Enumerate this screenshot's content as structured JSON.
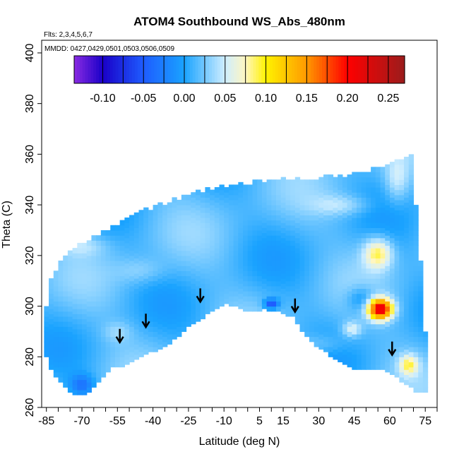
{
  "chart_data": {
    "type": "heatmap",
    "title": "ATOM4 Southbound WS_Abs_480nm",
    "flights_note": "Flts: 2,3,4,5,6,7",
    "dates_note": "MMDD: 0427,0429,0501,0503,0506,0509",
    "xlabel": "Latitude (deg N)",
    "ylabel": "Theta (C)",
    "xlim": [
      -87,
      80
    ],
    "ylim": [
      260,
      405
    ],
    "x_ticks": [
      -85,
      -70,
      -55,
      -40,
      -25,
      -10,
      5,
      15,
      30,
      45,
      60,
      75
    ],
    "y_ticks": [
      260,
      280,
      300,
      320,
      340,
      360,
      380,
      400
    ],
    "colorbar": {
      "range": [
        -0.135,
        0.27
      ],
      "ticks": [
        -0.1,
        -0.05,
        0.0,
        0.05,
        0.1,
        0.15,
        0.2,
        0.25
      ],
      "tick_labels": [
        "-0.10",
        "-0.05",
        "0.00",
        "0.05",
        "0.10",
        "0.15",
        "0.20",
        "0.25"
      ],
      "stops": [
        {
          "v": -0.135,
          "color": "#8a2be2"
        },
        {
          "v": -0.1,
          "color": "#1a00c8"
        },
        {
          "v": -0.05,
          "color": "#1e5cff"
        },
        {
          "v": 0.0,
          "color": "#1aa3ff"
        },
        {
          "v": 0.05,
          "color": "#cfeeff"
        },
        {
          "v": 0.075,
          "color": "#fff6c0"
        },
        {
          "v": 0.1,
          "color": "#fff200"
        },
        {
          "v": 0.15,
          "color": "#ff9900"
        },
        {
          "v": 0.2,
          "color": "#ff0000"
        },
        {
          "v": 0.27,
          "color": "#9b1c1c"
        }
      ]
    },
    "coverage": {
      "top": [
        [
          -86,
          300
        ],
        [
          -84,
          310
        ],
        [
          -80,
          318
        ],
        [
          -75,
          322
        ],
        [
          -70,
          324
        ],
        [
          -64,
          328
        ],
        [
          -58,
          331
        ],
        [
          -50,
          335
        ],
        [
          -42,
          338
        ],
        [
          -30,
          342
        ],
        [
          -20,
          345
        ],
        [
          -10,
          347
        ],
        [
          0,
          348
        ],
        [
          10,
          349
        ],
        [
          20,
          350
        ],
        [
          30,
          350
        ],
        [
          40,
          351
        ],
        [
          50,
          353
        ],
        [
          60,
          356
        ],
        [
          66,
          359
        ],
        [
          69,
          359
        ],
        [
          70,
          340
        ],
        [
          72,
          320
        ],
        [
          74,
          300
        ],
        [
          75,
          285
        ],
        [
          74,
          278
        ],
        [
          73,
          270
        ],
        [
          71,
          266
        ]
      ],
      "bottom": [
        [
          71,
          266
        ],
        [
          68,
          268
        ],
        [
          62,
          272
        ],
        [
          55,
          276
        ],
        [
          45,
          275
        ],
        [
          38,
          278
        ],
        [
          32,
          282
        ],
        [
          26,
          286
        ],
        [
          22,
          290
        ],
        [
          18,
          296
        ],
        [
          12,
          298
        ],
        [
          6,
          299
        ],
        [
          0,
          298
        ],
        [
          -6,
          300
        ],
        [
          -10,
          301
        ],
        [
          -18,
          297
        ],
        [
          -26,
          292
        ],
        [
          -35,
          285
        ],
        [
          -42,
          282
        ],
        [
          -48,
          279
        ],
        [
          -53,
          277
        ],
        [
          -58,
          276
        ],
        [
          -62,
          272
        ],
        [
          -66,
          268
        ],
        [
          -70,
          265
        ],
        [
          -75,
          265
        ],
        [
          -80,
          270
        ],
        [
          -84,
          275
        ],
        [
          -86,
          280
        ]
      ]
    },
    "base_value": 0.015,
    "blobs": [
      {
        "lat": 55,
        "theta": 321,
        "rx": 6,
        "ry": 6,
        "v": 0.09
      },
      {
        "lat": 56,
        "theta": 299,
        "rx": 5,
        "ry": 4,
        "v": 0.22
      },
      {
        "lat": 68,
        "theta": 277,
        "rx": 4,
        "ry": 4,
        "v": 0.08
      },
      {
        "lat": 44,
        "theta": 291,
        "rx": 4,
        "ry": 3,
        "v": 0.06
      },
      {
        "lat": 10,
        "theta": 301,
        "rx": 3,
        "ry": 2,
        "v": -0.06
      },
      {
        "lat": -70,
        "theta": 269,
        "rx": 5,
        "ry": 4,
        "v": -0.03
      },
      {
        "lat": -70,
        "theta": 324,
        "rx": 10,
        "ry": 4,
        "v": 0.04
      },
      {
        "lat": -45,
        "theta": 314,
        "rx": 10,
        "ry": 5,
        "v": 0.035
      },
      {
        "lat": 40,
        "theta": 340,
        "rx": 12,
        "ry": 4,
        "v": 0.045
      },
      {
        "lat": 63,
        "theta": 350,
        "rx": 5,
        "ry": 9,
        "v": 0.05
      },
      {
        "lat": 48,
        "theta": 303,
        "rx": 6,
        "ry": 5,
        "v": -0.02
      },
      {
        "lat": 30,
        "theta": 285,
        "rx": 12,
        "ry": 4,
        "v": 0.035
      },
      {
        "lat": -55,
        "theta": 290,
        "rx": 6,
        "ry": 4,
        "v": 0.035
      }
    ],
    "arrows": [
      {
        "lat": -54,
        "theta": 286
      },
      {
        "lat": -43,
        "theta": 292
      },
      {
        "lat": -20,
        "theta": 302
      },
      {
        "lat": 20,
        "theta": 298
      },
      {
        "lat": 61,
        "theta": 281
      }
    ]
  }
}
